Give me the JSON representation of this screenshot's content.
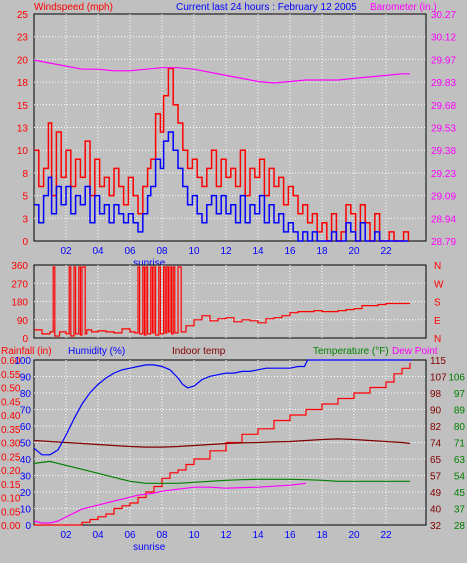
{
  "colors": {
    "background": "#c0c0c0",
    "plot_bg": "#c0c0c0",
    "grid": "#ffffff",
    "gust": "#ff0000",
    "wind": "#0000ff",
    "barometer": "#ff00ff",
    "direction": "#ff0000",
    "rainfall": "#ff0000",
    "humidity": "#0000ff",
    "indoor": "#800000",
    "temperature": "#008000",
    "dewpoint": "#ff00ff",
    "axis_red": "#ff0000",
    "axis_blue": "#0000ff",
    "axis_magenta": "#ff00ff",
    "axis_maroon": "#800000",
    "axis_green": "#008000"
  },
  "chart_data": [
    {
      "id": "wind",
      "type": "line",
      "title": "Current last 24 hours : February 12 2005",
      "ylabel_left": "Windspeed (mph)",
      "ylabel_right": "Barometer (in.)",
      "y_ticks_left": [
        "0",
        "3",
        "5",
        "8",
        "10",
        "13",
        "15",
        "18",
        "20",
        "23",
        "25"
      ],
      "y_ticks_right": [
        "28.79",
        "28.94",
        "29.09",
        "29.23",
        "29.38",
        "29.53",
        "29.68",
        "29.83",
        "29.97",
        "30.12",
        "30.27"
      ],
      "ylim_left": [
        0,
        25
      ],
      "ylim_right": [
        28.79,
        30.27
      ],
      "x_ticks": [
        "02",
        "04",
        "06",
        "08",
        "10",
        "12",
        "14",
        "16",
        "18",
        "20",
        "22"
      ],
      "xlim": [
        0,
        24.5
      ],
      "x_annotation": "sunrise",
      "sunrise_hour": 7.2,
      "series": [
        {
          "role": "gust",
          "x": [
            0,
            0.3,
            0.6,
            0.9,
            1.1,
            1.4,
            1.7,
            2.0,
            2.3,
            2.6,
            2.9,
            3.2,
            3.5,
            3.8,
            4.1,
            4.4,
            4.7,
            5.0,
            5.3,
            5.6,
            5.9,
            6.2,
            6.5,
            6.8,
            7.1,
            7.3,
            7.6,
            7.9,
            8.1,
            8.4,
            8.7,
            9.0,
            9.3,
            9.6,
            9.9,
            10.2,
            10.5,
            10.8,
            11.1,
            11.4,
            11.7,
            12.0,
            12.3,
            12.6,
            12.9,
            13.2,
            13.5,
            13.8,
            14.1,
            14.4,
            14.7,
            15.0,
            15.3,
            15.6,
            15.9,
            16.2,
            16.5,
            16.8,
            17.1,
            17.4,
            17.7,
            18.0,
            18.3,
            18.6,
            18.9,
            19.2,
            19.5,
            19.8,
            20.1,
            20.4,
            20.7,
            21.0,
            21.3,
            21.6,
            21.9,
            22.2,
            22.5,
            22.8,
            23.1,
            23.4
          ],
          "values": [
            10,
            6,
            8,
            13,
            5,
            12,
            7,
            10,
            6,
            9,
            7,
            11,
            5,
            9,
            6,
            7,
            5,
            8,
            6,
            4,
            7,
            5,
            3,
            6,
            8,
            9,
            14,
            12,
            16,
            19,
            15,
            13,
            10,
            8,
            9,
            7,
            6,
            8,
            10,
            6,
            9,
            7,
            8,
            6,
            10,
            5,
            8,
            7,
            9,
            5,
            8,
            6,
            7,
            4,
            6,
            5,
            3,
            4,
            2,
            3,
            1,
            2,
            0,
            3,
            0,
            1,
            4,
            3,
            0,
            4,
            2,
            0,
            3,
            0,
            0,
            1,
            0,
            0,
            1,
            0
          ]
        },
        {
          "role": "wind",
          "x": [
            0,
            0.3,
            0.6,
            0.9,
            1.1,
            1.4,
            1.7,
            2.0,
            2.3,
            2.6,
            2.9,
            3.2,
            3.5,
            3.8,
            4.1,
            4.4,
            4.7,
            5.0,
            5.3,
            5.6,
            5.9,
            6.2,
            6.5,
            6.8,
            7.1,
            7.3,
            7.6,
            7.9,
            8.1,
            8.4,
            8.7,
            9.0,
            9.3,
            9.6,
            9.9,
            10.2,
            10.5,
            10.8,
            11.1,
            11.4,
            11.7,
            12.0,
            12.3,
            12.6,
            12.9,
            13.2,
            13.5,
            13.8,
            14.1,
            14.4,
            14.7,
            15.0,
            15.3,
            15.6,
            15.9,
            16.2,
            16.5,
            16.8,
            17.1,
            17.4,
            17.7,
            18.0,
            18.3,
            18.6,
            18.9,
            19.2,
            19.5,
            19.8,
            20.1,
            20.4,
            20.7,
            21.0,
            21.3,
            21.6,
            21.9,
            22.2,
            22.5,
            22.8,
            23.1,
            23.4
          ],
          "values": [
            4,
            2,
            5,
            7,
            3,
            6,
            4,
            6,
            3,
            5,
            4,
            6,
            2,
            5,
            3,
            4,
            2,
            4,
            3,
            2,
            3,
            2,
            1,
            3,
            5,
            6,
            9,
            8,
            11,
            12,
            10,
            8,
            6,
            4,
            5,
            3,
            2,
            4,
            5,
            3,
            5,
            3,
            4,
            2,
            5,
            2,
            4,
            3,
            5,
            2,
            4,
            2,
            3,
            1,
            2,
            1,
            0,
            1,
            0,
            1,
            0,
            0,
            0,
            1,
            0,
            0,
            2,
            1,
            0,
            2,
            0,
            0,
            1,
            0,
            0,
            0,
            0,
            0,
            0,
            0
          ]
        },
        {
          "role": "barometer",
          "x": [
            0,
            1,
            2,
            3,
            4,
            5,
            6,
            7,
            8,
            9,
            10,
            11,
            12,
            13,
            14,
            15,
            16,
            17,
            18,
            19,
            20,
            21,
            22,
            23,
            23.5
          ],
          "values": [
            29.97,
            29.95,
            29.93,
            29.91,
            29.91,
            29.9,
            29.9,
            29.91,
            29.92,
            29.92,
            29.91,
            29.89,
            29.87,
            29.85,
            29.83,
            29.82,
            29.83,
            29.84,
            29.84,
            29.84,
            29.85,
            29.86,
            29.87,
            29.88,
            29.88
          ]
        }
      ]
    },
    {
      "id": "direction",
      "type": "line",
      "y_ticks_left": [
        "0",
        "90",
        "180",
        "270",
        "360"
      ],
      "y_ticks_right": [
        "N",
        "E",
        "S",
        "W",
        "N"
      ],
      "ylim": [
        0,
        360
      ],
      "xlim": [
        0,
        24.5
      ],
      "series": [
        {
          "role": "direction",
          "x": [
            0,
            0.5,
            1.0,
            1.2,
            1.3,
            1.6,
            2.0,
            2.2,
            2.3,
            2.5,
            2.6,
            2.8,
            2.9,
            3.0,
            3.2,
            3.3,
            3.6,
            4.0,
            4.5,
            5.0,
            5.5,
            6.0,
            6.3,
            6.5,
            6.6,
            6.8,
            6.9,
            7.0,
            7.1,
            7.3,
            7.4,
            7.5,
            7.6,
            7.8,
            7.9,
            8.1,
            8.2,
            8.3,
            8.4,
            8.5,
            8.6,
            8.7,
            8.8,
            9.0,
            9.2,
            9.5,
            10.0,
            10.5,
            11.0,
            11.5,
            12.0,
            12.5,
            13.0,
            13.5,
            14.0,
            14.5,
            15.0,
            15.5,
            16.0,
            16.5,
            17.0,
            17.5,
            18.0,
            18.5,
            19.0,
            19.5,
            20.0,
            20.5,
            21.0,
            21.5,
            22.0,
            23.0,
            23.5
          ],
          "values": [
            40,
            20,
            30,
            350,
            10,
            30,
            20,
            350,
            10,
            350,
            20,
            350,
            15,
            350,
            20,
            40,
            30,
            35,
            30,
            25,
            45,
            30,
            25,
            350,
            20,
            350,
            15,
            350,
            20,
            350,
            25,
            350,
            15,
            350,
            20,
            350,
            25,
            350,
            30,
            350,
            20,
            350,
            25,
            350,
            30,
            60,
            90,
            110,
            85,
            95,
            100,
            80,
            90,
            85,
            75,
            95,
            100,
            110,
            125,
            130,
            130,
            135,
            130,
            130,
            135,
            140,
            145,
            160,
            160,
            165,
            170,
            170,
            170
          ]
        }
      ]
    },
    {
      "id": "weather",
      "type": "line",
      "labels": {
        "rainfall": "Rainfall (in)",
        "humidity": "Humidity (%)",
        "indoor": "Indoor temp",
        "temperature": "Temperature (°F)",
        "dewpoint": "Dew Point"
      },
      "y_ticks_rain": [
        "0.00",
        "0.05",
        "0.10",
        "0.15",
        "0.20",
        "0.25",
        "0.30",
        "0.35",
        "0.40",
        "0.45",
        "0.50",
        "0.55",
        "0.60"
      ],
      "y_ticks_humidity": [
        "0",
        "10",
        "20",
        "30",
        "40",
        "50",
        "60",
        "70",
        "80",
        "90",
        "100"
      ],
      "y_ticks_right1": [
        "32",
        "40",
        "49",
        "57",
        "65",
        "74",
        "82",
        "90",
        "98",
        "107",
        "115"
      ],
      "y_ticks_right2": [
        "28",
        "37",
        "45",
        "54",
        "63",
        "71",
        "80",
        "89",
        "97",
        "106"
      ],
      "ylim_humidity": [
        0,
        101
      ],
      "ylim_temp": [
        32,
        115
      ],
      "ylim_rain": [
        0,
        0.6
      ],
      "xlim": [
        0,
        24.5
      ],
      "x_ticks": [
        "02",
        "04",
        "06",
        "08",
        "10",
        "12",
        "14",
        "16",
        "18",
        "20",
        "22"
      ],
      "x_annotation": "sunrise",
      "sunrise_hour": 7.2,
      "series": [
        {
          "role": "humidity",
          "x": [
            0,
            0.5,
            1.0,
            1.5,
            2.0,
            2.5,
            3.0,
            3.5,
            4.0,
            4.5,
            5.0,
            5.5,
            6.0,
            6.5,
            7.0,
            7.5,
            8.0,
            8.5,
            9.0,
            9.3,
            9.6,
            10.0,
            10.5,
            11.0,
            11.5,
            12.0,
            12.5,
            13.0,
            13.5,
            14.0,
            14.5,
            15.0,
            15.5,
            16.0,
            16.5,
            16.9,
            17.1,
            17.5,
            18.0,
            19.0,
            20.0,
            21.0,
            22.0,
            23.0,
            23.6
          ],
          "values": [
            47,
            43,
            43,
            46,
            55,
            65,
            74,
            81,
            86,
            90,
            93,
            95,
            96,
            97,
            98,
            98,
            97,
            95,
            90,
            86,
            84,
            85,
            89,
            91,
            92,
            93,
            93,
            94,
            94,
            95,
            96,
            96,
            96,
            96,
            97,
            97,
            101,
            101,
            101,
            101,
            101,
            101,
            101,
            101,
            101
          ]
        },
        {
          "role": "indoor",
          "x": [
            0,
            1,
            2,
            3,
            4,
            5,
            6,
            7,
            8,
            9,
            10,
            11,
            12,
            13,
            14,
            15,
            16,
            17,
            18,
            19,
            20,
            21,
            22,
            23,
            23.5
          ],
          "values": [
            74.5,
            74,
            73.5,
            73,
            72.5,
            72,
            71.5,
            71.2,
            71.2,
            71.5,
            72,
            72.5,
            73,
            73.3,
            73.5,
            73.8,
            74,
            74.5,
            75,
            75.3,
            75,
            74.5,
            74,
            73.5,
            73
          ]
        },
        {
          "role": "temperature",
          "x": [
            0,
            0.5,
            1.0,
            1.5,
            2.0,
            2.5,
            3.0,
            3.5,
            4.0,
            4.5,
            5.0,
            5.5,
            6.0,
            6.5,
            7.0,
            8.0,
            9.0,
            10.0,
            11.0,
            12.0,
            13.0,
            14.0,
            15.0,
            16.0,
            17.0,
            18.0,
            19.0,
            20.0,
            21.0,
            22.0,
            23.0,
            23.5
          ],
          "values": [
            63,
            63.5,
            64,
            63,
            62,
            61,
            60,
            59,
            58,
            57,
            56,
            55,
            54,
            53.5,
            53,
            53,
            53,
            53.5,
            54,
            54.5,
            54.8,
            55,
            55,
            55,
            54.8,
            54.5,
            54,
            54,
            54,
            54,
            54,
            54
          ]
        },
        {
          "role": "dewpoint",
          "x": [
            0,
            0.5,
            1.0,
            1.5,
            2.0,
            2.5,
            3.0,
            3.5,
            4.0,
            4.5,
            5.0,
            5.5,
            6.0,
            6.5,
            7.0,
            7.5,
            8.0,
            9.0,
            10.0,
            11.0,
            12.0,
            13.0,
            14.0,
            15.0,
            16.0,
            17.0
          ],
          "values": [
            34,
            33,
            33,
            34,
            36,
            38,
            40,
            41,
            42,
            43,
            44,
            45,
            46,
            47,
            47.5,
            48,
            49,
            50,
            51,
            51,
            50.5,
            50.8,
            51,
            51.5,
            52,
            53
          ]
        },
        {
          "role": "rainfall",
          "x": [
            0,
            2.5,
            3.0,
            3.5,
            4.0,
            4.5,
            5.0,
            5.5,
            6.0,
            6.5,
            7.0,
            7.5,
            8.0,
            8.5,
            9.0,
            9.5,
            10.0,
            11.0,
            12.0,
            13.0,
            14.0,
            15.0,
            16.0,
            17.0,
            18.0,
            19.0,
            20.0,
            21.0,
            22.0,
            22.5,
            23.0,
            23.5
          ],
          "values": [
            0,
            0,
            0.01,
            0.02,
            0.03,
            0.04,
            0.06,
            0.07,
            0.08,
            0.1,
            0.12,
            0.14,
            0.17,
            0.19,
            0.2,
            0.22,
            0.24,
            0.27,
            0.3,
            0.33,
            0.35,
            0.38,
            0.4,
            0.42,
            0.44,
            0.46,
            0.48,
            0.5,
            0.52,
            0.55,
            0.57,
            0.59
          ]
        }
      ]
    }
  ]
}
